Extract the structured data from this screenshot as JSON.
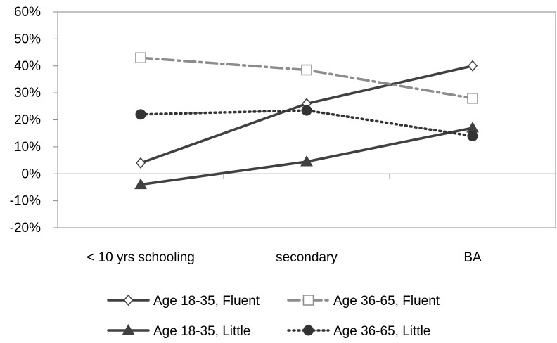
{
  "chart_data": {
    "type": "line",
    "title": "",
    "xlabel": "",
    "ylabel": "",
    "categories": [
      "< 10 yrs schooling",
      "secondary",
      "BA"
    ],
    "ylim": [
      -20,
      60
    ],
    "yticks": [
      -20,
      -10,
      0,
      10,
      20,
      30,
      40,
      50,
      60
    ],
    "ytick_labels": [
      "-20%",
      "-10%",
      "0%",
      "10%",
      "20%",
      "30%",
      "40%",
      "50%",
      "60%"
    ],
    "grid": false,
    "legend_position": "bottom",
    "series": [
      {
        "name": "Age 18-35, Fluent",
        "values": [
          4,
          26,
          40
        ],
        "color": "#404040",
        "line": "solid",
        "marker": "open-diamond"
      },
      {
        "name": "Age 36-65, Fluent",
        "values": [
          43,
          38.5,
          28
        ],
        "color": "#8c8c8c",
        "line": "dash-dot",
        "marker": "open-square"
      },
      {
        "name": "Age 18-35, Little",
        "values": [
          -4,
          4.5,
          17
        ],
        "color": "#404040",
        "line": "solid",
        "marker": "filled-triangle"
      },
      {
        "name": "Age 36-65, Little",
        "values": [
          22,
          23.5,
          14
        ],
        "color": "#333333",
        "line": "dotted",
        "marker": "filled-circle"
      }
    ]
  }
}
